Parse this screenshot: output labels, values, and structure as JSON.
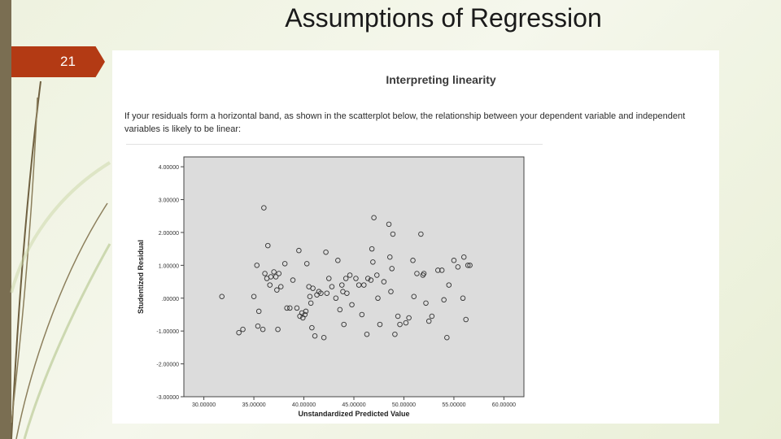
{
  "slide": {
    "title": "Assumptions of Regression",
    "number": "21"
  },
  "panel": {
    "heading": "Interpreting linearity",
    "text": "If your residuals form a horizontal band, as shown in the scatterplot below, the relationship between your dependent variable and independent variables is likely to be linear:"
  },
  "colors": {
    "accent": "#b33a14",
    "left_bar": "#7a6e52",
    "plot_bg": "#dcdcdc",
    "marker": "#333333"
  },
  "chart_data": {
    "type": "scatter",
    "xlabel": "Unstandardized Predicted Value",
    "ylabel": "Studentized Residual",
    "xlim": [
      28,
      62
    ],
    "ylim": [
      -3,
      4.5
    ],
    "xticks": [
      30,
      35,
      40,
      45,
      50,
      55,
      60
    ],
    "xtick_labels": [
      "30.00000",
      "35.00000",
      "40.00000",
      "45.00000",
      "50.00000",
      "55.00000",
      "60.00000"
    ],
    "yticks": [
      -3,
      -2,
      -1,
      0,
      1,
      2,
      3,
      4
    ],
    "ytick_labels": [
      "-3.00000",
      "-2.00000",
      "-1.00000",
      ".00000",
      "1.00000",
      "2.00000",
      "3.00000",
      "4.00000"
    ],
    "grid": false,
    "points": [
      [
        31.8,
        0.05
      ],
      [
        33.5,
        -1.05
      ],
      [
        33.9,
        -0.95
      ],
      [
        35.0,
        0.05
      ],
      [
        35.3,
        1.0
      ],
      [
        35.4,
        -0.85
      ],
      [
        35.5,
        -0.4
      ],
      [
        35.9,
        -0.95
      ],
      [
        36.0,
        2.75
      ],
      [
        36.1,
        0.75
      ],
      [
        36.3,
        0.6
      ],
      [
        36.4,
        1.6
      ],
      [
        36.6,
        0.4
      ],
      [
        36.7,
        0.65
      ],
      [
        37.0,
        0.8
      ],
      [
        37.2,
        0.65
      ],
      [
        37.3,
        0.25
      ],
      [
        37.4,
        -0.95
      ],
      [
        37.5,
        0.75
      ],
      [
        37.7,
        0.35
      ],
      [
        38.1,
        1.05
      ],
      [
        38.3,
        -0.3
      ],
      [
        38.6,
        -0.3
      ],
      [
        38.9,
        0.55
      ],
      [
        39.3,
        -0.3
      ],
      [
        39.5,
        1.45
      ],
      [
        39.6,
        -0.55
      ],
      [
        39.8,
        -0.45
      ],
      [
        39.9,
        -0.6
      ],
      [
        40.1,
        -0.5
      ],
      [
        40.2,
        -0.4
      ],
      [
        40.3,
        1.05
      ],
      [
        40.5,
        0.35
      ],
      [
        40.6,
        0.05
      ],
      [
        40.7,
        -0.15
      ],
      [
        40.8,
        -0.9
      ],
      [
        40.9,
        0.3
      ],
      [
        41.1,
        -1.15
      ],
      [
        41.3,
        0.1
      ],
      [
        41.5,
        0.2
      ],
      [
        41.7,
        0.15
      ],
      [
        42.0,
        -1.2
      ],
      [
        42.2,
        1.4
      ],
      [
        42.3,
        0.15
      ],
      [
        42.5,
        0.6
      ],
      [
        42.8,
        0.35
      ],
      [
        43.2,
        0.0
      ],
      [
        43.4,
        1.15
      ],
      [
        43.6,
        -0.35
      ],
      [
        43.8,
        0.4
      ],
      [
        43.9,
        0.2
      ],
      [
        44.0,
        -0.8
      ],
      [
        44.2,
        0.6
      ],
      [
        44.3,
        0.15
      ],
      [
        44.6,
        0.7
      ],
      [
        44.8,
        -0.2
      ],
      [
        45.2,
        0.6
      ],
      [
        45.5,
        0.4
      ],
      [
        45.8,
        -0.5
      ],
      [
        46.0,
        0.4
      ],
      [
        46.3,
        -1.1
      ],
      [
        46.4,
        0.6
      ],
      [
        46.7,
        0.55
      ],
      [
        46.8,
        1.5
      ],
      [
        46.9,
        1.1
      ],
      [
        47.0,
        2.45
      ],
      [
        47.3,
        0.7
      ],
      [
        47.4,
        0.0
      ],
      [
        47.6,
        -0.8
      ],
      [
        48.0,
        0.5
      ],
      [
        48.5,
        2.25
      ],
      [
        48.6,
        1.25
      ],
      [
        48.7,
        0.2
      ],
      [
        48.8,
        0.9
      ],
      [
        48.9,
        1.95
      ],
      [
        49.1,
        -1.1
      ],
      [
        49.4,
        -0.55
      ],
      [
        49.6,
        -0.8
      ],
      [
        50.2,
        -0.75
      ],
      [
        50.5,
        -0.6
      ],
      [
        50.9,
        1.15
      ],
      [
        51.0,
        0.05
      ],
      [
        51.3,
        0.75
      ],
      [
        51.7,
        1.95
      ],
      [
        51.9,
        0.7
      ],
      [
        52.0,
        0.75
      ],
      [
        52.2,
        -0.15
      ],
      [
        52.5,
        -0.7
      ],
      [
        52.8,
        -0.55
      ],
      [
        53.4,
        0.85
      ],
      [
        53.8,
        0.85
      ],
      [
        54.0,
        -0.05
      ],
      [
        54.3,
        -1.2
      ],
      [
        54.5,
        0.4
      ],
      [
        55.0,
        1.15
      ],
      [
        55.4,
        0.95
      ],
      [
        55.9,
        0.0
      ],
      [
        56.0,
        1.25
      ],
      [
        56.2,
        -0.65
      ],
      [
        56.4,
        1.0
      ],
      [
        56.6,
        1.0
      ]
    ]
  }
}
